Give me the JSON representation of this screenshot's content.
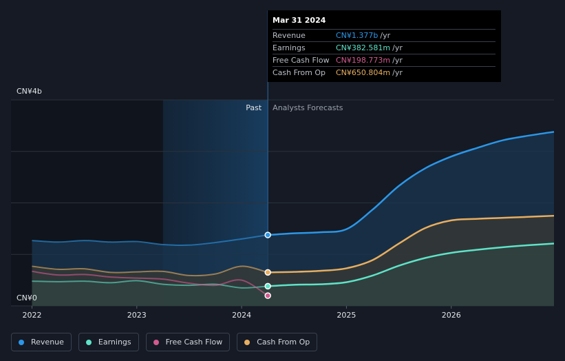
{
  "colors": {
    "revenue": "#2b97e8",
    "earnings": "#5fe3c8",
    "free_cash_flow": "#d35a8f",
    "cash_from_op": "#e8ae60",
    "background": "#151a24"
  },
  "tooltip": {
    "date": "Mar 31 2024",
    "rows": [
      {
        "label": "Revenue",
        "value": "CN¥1.377b",
        "unit": "/yr"
      },
      {
        "label": "Earnings",
        "value": "CN¥382.581m",
        "unit": "/yr"
      },
      {
        "label": "Free Cash Flow",
        "value": "CN¥198.773m",
        "unit": "/yr"
      },
      {
        "label": "Cash From Op",
        "value": "CN¥650.804m",
        "unit": "/yr"
      }
    ]
  },
  "legend": [
    {
      "label": "Revenue",
      "key": "revenue"
    },
    {
      "label": "Earnings",
      "key": "earnings"
    },
    {
      "label": "Free Cash Flow",
      "key": "free_cash_flow"
    },
    {
      "label": "Cash From Op",
      "key": "cash_from_op"
    }
  ],
  "chart_data": {
    "type": "line",
    "ylabel_top": "CN¥4b",
    "ylabel_bottom": "CN¥0",
    "ylim": [
      0,
      4
    ],
    "xlim": [
      2021.8,
      2026.98
    ],
    "x_ticks": [
      {
        "value": 2022,
        "label": "2022"
      },
      {
        "value": 2023,
        "label": "2023"
      },
      {
        "value": 2024,
        "label": "2024"
      },
      {
        "value": 2025,
        "label": "2025"
      },
      {
        "value": 2026,
        "label": "2026"
      }
    ],
    "past_label": "Past",
    "forecast_label": "Analysts Forecasts",
    "divider_x": 2024.25,
    "highlight_start_x": 2023.25,
    "series": [
      {
        "name": "Revenue",
        "key": "revenue",
        "fill": true,
        "points": [
          [
            2022,
            1.27
          ],
          [
            2022.25,
            1.24
          ],
          [
            2022.5,
            1.27
          ],
          [
            2022.75,
            1.24
          ],
          [
            2023,
            1.25
          ],
          [
            2023.25,
            1.19
          ],
          [
            2023.5,
            1.18
          ],
          [
            2023.75,
            1.23
          ],
          [
            2024,
            1.3
          ],
          [
            2024.25,
            1.377
          ],
          [
            2024.5,
            1.41
          ],
          [
            2024.75,
            1.43
          ],
          [
            2025,
            1.49
          ],
          [
            2025.25,
            1.87
          ],
          [
            2025.5,
            2.33
          ],
          [
            2025.75,
            2.67
          ],
          [
            2026,
            2.9
          ],
          [
            2026.25,
            3.07
          ],
          [
            2026.5,
            3.22
          ],
          [
            2026.75,
            3.31
          ],
          [
            2026.98,
            3.38
          ]
        ]
      },
      {
        "name": "Cash From Op",
        "key": "cash_from_op",
        "fill": true,
        "points": [
          [
            2022,
            0.77
          ],
          [
            2022.25,
            0.71
          ],
          [
            2022.5,
            0.72
          ],
          [
            2022.75,
            0.65
          ],
          [
            2023,
            0.66
          ],
          [
            2023.25,
            0.67
          ],
          [
            2023.5,
            0.59
          ],
          [
            2023.75,
            0.62
          ],
          [
            2024,
            0.77
          ],
          [
            2024.25,
            0.650804
          ],
          [
            2024.5,
            0.66
          ],
          [
            2024.75,
            0.68
          ],
          [
            2025,
            0.73
          ],
          [
            2025.25,
            0.89
          ],
          [
            2025.5,
            1.21
          ],
          [
            2025.75,
            1.51
          ],
          [
            2026,
            1.66
          ],
          [
            2026.25,
            1.69
          ],
          [
            2026.5,
            1.71
          ],
          [
            2026.75,
            1.73
          ],
          [
            2026.98,
            1.75
          ]
        ]
      },
      {
        "name": "Earnings",
        "key": "earnings",
        "fill": true,
        "points": [
          [
            2022,
            0.48
          ],
          [
            2022.25,
            0.47
          ],
          [
            2022.5,
            0.48
          ],
          [
            2022.75,
            0.45
          ],
          [
            2023,
            0.49
          ],
          [
            2023.25,
            0.42
          ],
          [
            2023.5,
            0.4
          ],
          [
            2023.75,
            0.42
          ],
          [
            2024,
            0.35
          ],
          [
            2024.25,
            0.382581
          ],
          [
            2024.5,
            0.41
          ],
          [
            2024.75,
            0.42
          ],
          [
            2025,
            0.46
          ],
          [
            2025.25,
            0.59
          ],
          [
            2025.5,
            0.78
          ],
          [
            2025.75,
            0.93
          ],
          [
            2026,
            1.03
          ],
          [
            2026.25,
            1.09
          ],
          [
            2026.5,
            1.14
          ],
          [
            2026.75,
            1.18
          ],
          [
            2026.98,
            1.21
          ]
        ]
      },
      {
        "name": "Free Cash Flow",
        "key": "free_cash_flow",
        "fill": false,
        "points": [
          [
            2022,
            0.67
          ],
          [
            2022.25,
            0.6
          ],
          [
            2022.5,
            0.61
          ],
          [
            2022.75,
            0.56
          ],
          [
            2023,
            0.54
          ],
          [
            2023.25,
            0.52
          ],
          [
            2023.5,
            0.44
          ],
          [
            2023.75,
            0.4
          ],
          [
            2024,
            0.5
          ],
          [
            2024.25,
            0.198773
          ]
        ]
      }
    ]
  }
}
